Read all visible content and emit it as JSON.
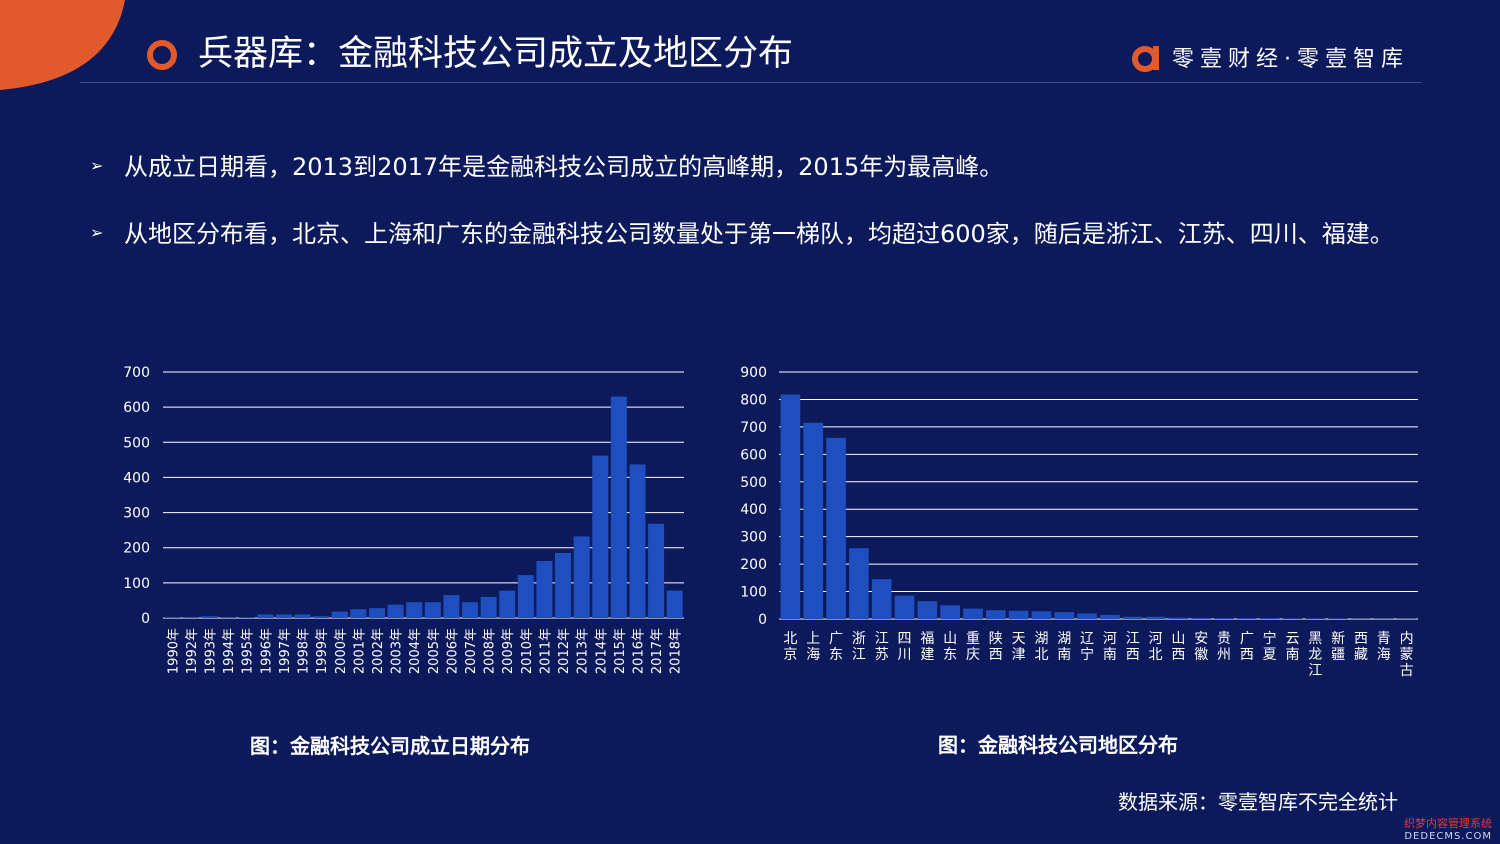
{
  "header": {
    "title": "兵器库：金融科技公司成立及地区分布",
    "brand": "零壹财经·零壹智库"
  },
  "bullets": [
    {
      "text": "从成立日期看，2013到2017年是金融科技公司成立的高峰期，2015年为最高峰。"
    },
    {
      "text": "从地区分布看，北京、上海和广东的金融科技公司数量处于第一梯队，均超过600家，随后是浙江、江苏、四川、福建。"
    }
  ],
  "captions": {
    "left": "图：金融科技公司成立日期分布",
    "right": "图：金融科技公司地区分布"
  },
  "source": "数据来源：零壹智库不完全统计",
  "watermark": {
    "line1": "织梦内容管理系统",
    "line2": "DEDECMS.COM"
  },
  "colors": {
    "background": "#0c1a5c",
    "bar": "#1f4fbf",
    "accent": "#e05a2b",
    "grid": "#ffffff"
  },
  "chart_data": [
    {
      "type": "bar",
      "title": "",
      "categories": [
        "1990年",
        "1992年",
        "1993年",
        "1994年",
        "1995年",
        "1996年",
        "1997年",
        "1998年",
        "1999年",
        "2000年",
        "2001年",
        "2002年",
        "2003年",
        "2004年",
        "2005年",
        "2006年",
        "2007年",
        "2008年",
        "2009年",
        "2010年",
        "2011年",
        "2012年",
        "2013年",
        "2014年",
        "2015年",
        "2016年",
        "2017年",
        "2018年"
      ],
      "values": [
        1,
        1,
        5,
        1,
        2,
        10,
        10,
        10,
        5,
        18,
        25,
        28,
        38,
        45,
        45,
        65,
        45,
        60,
        78,
        122,
        162,
        185,
        232,
        462,
        630,
        437,
        268,
        78
      ],
      "ylim": [
        0,
        700
      ],
      "yticks": [
        0,
        100,
        200,
        300,
        400,
        500,
        600,
        700
      ],
      "grid": true
    },
    {
      "type": "bar",
      "title": "",
      "categories": [
        "北京",
        "上海",
        "广东",
        "浙江",
        "江苏",
        "四川",
        "福建",
        "山东",
        "重庆",
        "陕西",
        "天津",
        "湖北",
        "湖南",
        "辽宁",
        "河南",
        "江西",
        "河北",
        "山西",
        "安徽",
        "贵州",
        "广西",
        "宁夏",
        "云南",
        "黑龙江",
        "新疆",
        "西藏",
        "青海",
        "内蒙古"
      ],
      "values": [
        818,
        715,
        660,
        258,
        145,
        85,
        65,
        50,
        38,
        32,
        30,
        28,
        25,
        20,
        15,
        8,
        8,
        5,
        4,
        3,
        3,
        3,
        2,
        2,
        2,
        1,
        1,
        1
      ],
      "ylim": [
        0,
        900
      ],
      "yticks": [
        0,
        100,
        200,
        300,
        400,
        500,
        600,
        700,
        800,
        900
      ],
      "grid": true
    }
  ]
}
